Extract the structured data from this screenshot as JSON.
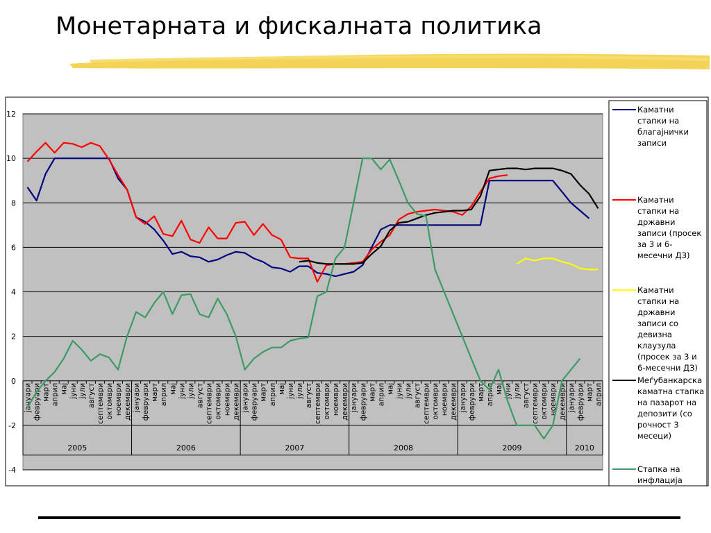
{
  "header": {
    "title": "Монетарната и фискалната политика"
  },
  "chart_data": {
    "type": "line",
    "categories": [
      "јануари",
      "февруари",
      "март",
      "април",
      "мај",
      "јуни",
      "јули",
      "август",
      "септември",
      "октомври",
      "ноември",
      "декември",
      "јануари",
      "февруари",
      "март",
      "април",
      "мај",
      "јуни",
      "јули",
      "август",
      "септември",
      "октомври",
      "ноември",
      "декември",
      "јануари",
      "февруари",
      "март",
      "април",
      "мај",
      "јуни",
      "јули",
      "август",
      "септември",
      "октомври",
      "ноември",
      "декември",
      "јануари",
      "февруари",
      "март",
      "април",
      "мај",
      "јуни",
      "јули",
      "август",
      "септември",
      "октомври",
      "ноември",
      "декември",
      "јануари",
      "февруари",
      "март",
      "април",
      "мај",
      "јуни",
      "јули",
      "август",
      "септември",
      "октомври",
      "ноември",
      "декември",
      "јануари",
      "февруари",
      "март",
      "април"
    ],
    "years": [
      "2005",
      "2006",
      "2007",
      "2008",
      "2009",
      "2010"
    ],
    "ylim": [
      -4,
      12
    ],
    "yticks": [
      -4,
      -2,
      0,
      2,
      4,
      6,
      8,
      10,
      12
    ],
    "grid": true,
    "background": "#c0c0c0",
    "legend": "right",
    "series": [
      {
        "name": "Каматни стапки на благајнички записи",
        "color": "#000080",
        "values": [
          8.7,
          8.1,
          9.3,
          10.0,
          10.0,
          10.0,
          10.0,
          10.0,
          10.0,
          10.0,
          9.1,
          8.6,
          7.35,
          7.15,
          6.8,
          6.3,
          5.7,
          5.8,
          5.6,
          5.55,
          5.35,
          5.45,
          5.65,
          5.8,
          5.75,
          5.5,
          5.35,
          5.1,
          5.05,
          4.9,
          5.15,
          5.15,
          4.85,
          4.8,
          4.7,
          4.8,
          4.9,
          5.2,
          6.0,
          6.8,
          7.0,
          7.0,
          7.0,
          7.0,
          7.0,
          7.0,
          7.0,
          7.0,
          7.0,
          7.0,
          7.0,
          9.0,
          9.0,
          9.0,
          9.0,
          9.0,
          9.0,
          9.0,
          9.0,
          8.5,
          8.0,
          7.65,
          7.3,
          null
        ]
      },
      {
        "name": "Каматни стапки на државни записи (просек за 3 и 6-месечни ДЗ)",
        "color": "#ff0000",
        "values": [
          9.85,
          10.3,
          10.7,
          10.25,
          10.7,
          10.65,
          10.5,
          10.7,
          10.55,
          9.95,
          9.25,
          8.6,
          7.35,
          7.05,
          7.4,
          6.6,
          6.5,
          7.2,
          6.35,
          6.2,
          6.9,
          6.4,
          6.4,
          7.1,
          7.15,
          6.55,
          7.05,
          6.55,
          6.35,
          5.55,
          5.5,
          5.5,
          4.45,
          5.2,
          5.25,
          5.25,
          5.3,
          5.35,
          5.9,
          6.25,
          6.55,
          7.25,
          7.5,
          7.6,
          7.65,
          7.7,
          7.65,
          7.6,
          7.45,
          7.85,
          8.5,
          9.1,
          9.2,
          9.25,
          null,
          null,
          null,
          null,
          null,
          null,
          null,
          null,
          null,
          null
        ]
      },
      {
        "name": "Каматни стапки на државни записи со девизна клаузула (просек за 3 и 6-месечни ДЗ)",
        "color": "#ffff00",
        "values": [
          null,
          null,
          null,
          null,
          null,
          null,
          null,
          null,
          null,
          null,
          null,
          null,
          null,
          null,
          null,
          null,
          null,
          null,
          null,
          null,
          null,
          null,
          null,
          null,
          null,
          null,
          null,
          null,
          null,
          null,
          null,
          null,
          null,
          null,
          null,
          null,
          null,
          null,
          null,
          null,
          null,
          null,
          null,
          null,
          null,
          null,
          null,
          null,
          null,
          null,
          null,
          null,
          null,
          null,
          5.25,
          5.5,
          5.4,
          5.5,
          5.5,
          5.35,
          5.25,
          5.05,
          5.0,
          5.0
        ]
      },
      {
        "name": "Меѓубанкарска каматна стапка на пазарот на депозити (со рочност 3 месеци)",
        "color": "#000000",
        "values": [
          null,
          null,
          null,
          null,
          null,
          null,
          null,
          null,
          null,
          null,
          null,
          null,
          null,
          null,
          null,
          null,
          null,
          null,
          null,
          null,
          null,
          null,
          null,
          null,
          null,
          null,
          null,
          null,
          null,
          null,
          5.35,
          5.4,
          5.3,
          5.25,
          5.25,
          5.25,
          5.25,
          5.3,
          5.7,
          6.05,
          6.75,
          7.1,
          7.15,
          7.3,
          7.45,
          7.55,
          7.6,
          7.65,
          7.65,
          7.7,
          8.3,
          9.45,
          9.5,
          9.55,
          9.55,
          9.5,
          9.55,
          9.55,
          9.55,
          9.45,
          9.3,
          8.8,
          8.4,
          7.75
        ]
      },
      {
        "name": "Стапка на инфлација",
        "color": "#3c9a64",
        "values": [
          -1.2,
          -0.5,
          0.0,
          0.4,
          1.0,
          1.8,
          1.4,
          0.9,
          1.2,
          1.05,
          0.5,
          2.0,
          3.1,
          2.85,
          3.5,
          4.0,
          3.0,
          3.85,
          3.9,
          3.0,
          2.85,
          3.7,
          3.0,
          2.0,
          0.5,
          1.0,
          1.3,
          1.5,
          1.5,
          1.8,
          1.9,
          1.95,
          3.8,
          4.0,
          5.5,
          6.0,
          8.0,
          10.0,
          10.0,
          9.5,
          9.95,
          9.0,
          8.0,
          7.5,
          7.4,
          5.0,
          4.0,
          3.0,
          2.0,
          1.0,
          0.0,
          -0.4,
          0.5,
          -0.9,
          -2.0,
          -2.0,
          -2.0,
          -2.6,
          -2.0,
          0.0,
          0.5,
          1.0,
          null,
          null
        ]
      }
    ]
  }
}
